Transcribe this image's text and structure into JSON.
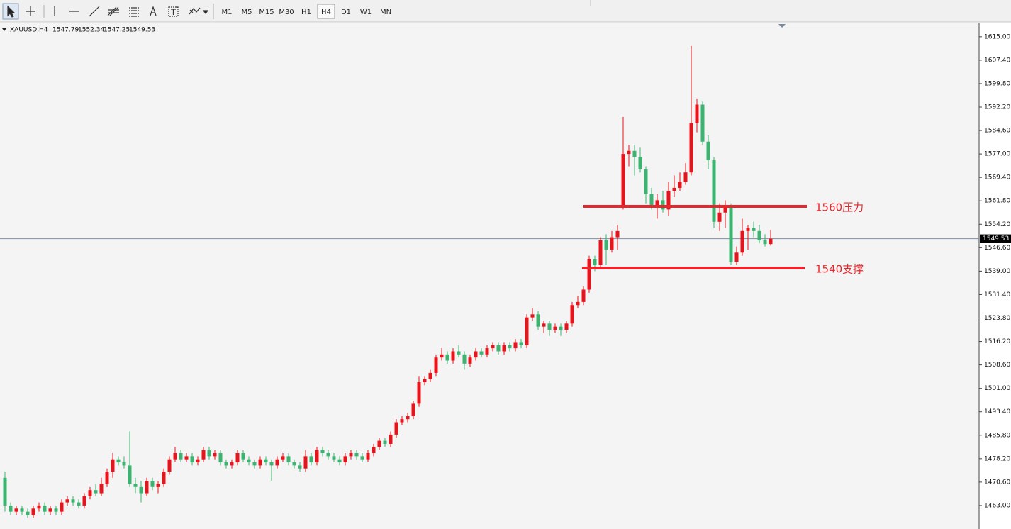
{
  "toolbar": {
    "timeframes": [
      "M1",
      "M5",
      "M15",
      "M30",
      "H1",
      "H4",
      "D1",
      "W1",
      "MN"
    ],
    "active": "H4"
  },
  "chart_data": {
    "type": "candlestick",
    "header": {
      "symbol": "XAUUSD,H4",
      "open": 1547.79,
      "high": 1552.34,
      "low": 1547.25,
      "close": 1549.53
    },
    "up_color": "#e8141b",
    "down_color": "#3cb371",
    "candles": [
      [
        1472,
        1474,
        1461,
        1463
      ],
      [
        1463,
        1464,
        1460,
        1461
      ],
      [
        1461,
        1463,
        1460,
        1462
      ],
      [
        1462,
        1463,
        1460,
        1461
      ],
      [
        1461,
        1462,
        1459,
        1460
      ],
      [
        1460,
        1463,
        1459,
        1462
      ],
      [
        1462,
        1464,
        1461,
        1463
      ],
      [
        1463,
        1464,
        1460,
        1461
      ],
      [
        1461,
        1463,
        1460,
        1462
      ],
      [
        1462,
        1463,
        1460,
        1461
      ],
      [
        1461,
        1465,
        1460,
        1464
      ],
      [
        1464,
        1466,
        1463,
        1465
      ],
      [
        1465,
        1466,
        1463,
        1464
      ],
      [
        1464,
        1465,
        1462,
        1463
      ],
      [
        1463,
        1467,
        1462,
        1466
      ],
      [
        1466,
        1469,
        1465,
        1468
      ],
      [
        1468,
        1470,
        1466,
        1467
      ],
      [
        1467,
        1472,
        1466,
        1470
      ],
      [
        1470,
        1475,
        1469,
        1474
      ],
      [
        1474,
        1480,
        1472,
        1478
      ],
      [
        1478,
        1479,
        1476,
        1477
      ],
      [
        1477,
        1479,
        1475,
        1476
      ],
      [
        1476,
        1487,
        1469,
        1470
      ],
      [
        1470,
        1472,
        1467,
        1469
      ],
      [
        1469,
        1471,
        1464,
        1467
      ],
      [
        1467,
        1472,
        1466,
        1471
      ],
      [
        1471,
        1472,
        1468,
        1469
      ],
      [
        1469,
        1471,
        1467,
        1470
      ],
      [
        1470,
        1475,
        1469,
        1474
      ],
      [
        1474,
        1479,
        1473,
        1478
      ],
      [
        1478,
        1482,
        1477,
        1480
      ],
      [
        1480,
        1481,
        1477,
        1478
      ],
      [
        1478,
        1480,
        1477,
        1479
      ],
      [
        1479,
        1480,
        1476,
        1477
      ],
      [
        1477,
        1479,
        1476,
        1478
      ],
      [
        1478,
        1482,
        1477,
        1481
      ],
      [
        1481,
        1482,
        1478,
        1479
      ],
      [
        1479,
        1481,
        1478,
        1480
      ],
      [
        1480,
        1481,
        1476,
        1477
      ],
      [
        1477,
        1478,
        1475,
        1476
      ],
      [
        1476,
        1478,
        1475,
        1477
      ],
      [
        1477,
        1481,
        1476,
        1480
      ],
      [
        1480,
        1481,
        1477,
        1478
      ],
      [
        1478,
        1479,
        1476,
        1477
      ],
      [
        1477,
        1478,
        1475,
        1476
      ],
      [
        1476,
        1479,
        1475,
        1478
      ],
      [
        1478,
        1479,
        1476,
        1477
      ],
      [
        1477,
        1478,
        1471,
        1476
      ],
      [
        1476,
        1479,
        1475,
        1478
      ],
      [
        1478,
        1480,
        1477,
        1479
      ],
      [
        1479,
        1480,
        1476,
        1477
      ],
      [
        1477,
        1478,
        1475,
        1476
      ],
      [
        1476,
        1477,
        1474,
        1475
      ],
      [
        1475,
        1481,
        1474,
        1479
      ],
      [
        1479,
        1480,
        1476,
        1477
      ],
      [
        1477,
        1482,
        1476,
        1481
      ],
      [
        1481,
        1482,
        1479,
        1480
      ],
      [
        1480,
        1481,
        1478,
        1479
      ],
      [
        1479,
        1480,
        1477,
        1478
      ],
      [
        1478,
        1479,
        1476,
        1477
      ],
      [
        1477,
        1480,
        1476,
        1479
      ],
      [
        1479,
        1481,
        1478,
        1480
      ],
      [
        1480,
        1481,
        1478,
        1479
      ],
      [
        1479,
        1480,
        1477,
        1478
      ],
      [
        1478,
        1481,
        1477,
        1480
      ],
      [
        1480,
        1483,
        1479,
        1482
      ],
      [
        1482,
        1485,
        1481,
        1484
      ],
      [
        1484,
        1485,
        1482,
        1483
      ],
      [
        1483,
        1487,
        1482,
        1486
      ],
      [
        1486,
        1491,
        1485,
        1490
      ],
      [
        1490,
        1492,
        1489,
        1491
      ],
      [
        1491,
        1493,
        1490,
        1492
      ],
      [
        1492,
        1497,
        1491,
        1496
      ],
      [
        1496,
        1505,
        1495,
        1503
      ],
      [
        1503,
        1505,
        1502,
        1504
      ],
      [
        1504,
        1507,
        1503,
        1506
      ],
      [
        1506,
        1512,
        1505,
        1511
      ],
      [
        1511,
        1514,
        1510,
        1512
      ],
      [
        1512,
        1513,
        1509,
        1510
      ],
      [
        1510,
        1514,
        1509,
        1513
      ],
      [
        1513,
        1515,
        1511,
        1512
      ],
      [
        1512,
        1513,
        1507,
        1509
      ],
      [
        1509,
        1512,
        1508,
        1511
      ],
      [
        1511,
        1514,
        1510,
        1513
      ],
      [
        1513,
        1514,
        1511,
        1512
      ],
      [
        1512,
        1515,
        1511,
        1514
      ],
      [
        1514,
        1516,
        1513,
        1515
      ],
      [
        1515,
        1516,
        1512,
        1513
      ],
      [
        1513,
        1516,
        1512,
        1515
      ],
      [
        1515,
        1516,
        1513,
        1514
      ],
      [
        1514,
        1517,
        1513,
        1516
      ],
      [
        1516,
        1517,
        1514,
        1515
      ],
      [
        1515,
        1525,
        1514,
        1524
      ],
      [
        1524,
        1527,
        1523,
        1525
      ],
      [
        1525,
        1526,
        1520,
        1521
      ],
      [
        1521,
        1523,
        1519,
        1522
      ],
      [
        1522,
        1523,
        1518,
        1520
      ],
      [
        1520,
        1522,
        1519,
        1521
      ],
      [
        1521,
        1522,
        1518,
        1520
      ],
      [
        1520,
        1523,
        1519,
        1522
      ],
      [
        1522,
        1529,
        1521,
        1528
      ],
      [
        1528,
        1531,
        1527,
        1529
      ],
      [
        1529,
        1534,
        1528,
        1533
      ],
      [
        1533,
        1544,
        1532,
        1543
      ],
      [
        1543,
        1544,
        1539,
        1541
      ],
      [
        1541,
        1550,
        1540,
        1549
      ],
      [
        1549,
        1551,
        1541,
        1546
      ],
      [
        1546,
        1552,
        1545,
        1550
      ],
      [
        1550,
        1554,
        1546,
        1552
      ],
      [
        1560,
        1589,
        1559,
        1577
      ],
      [
        1577,
        1580,
        1573,
        1578
      ],
      [
        1578,
        1580,
        1570,
        1576
      ],
      [
        1576,
        1579,
        1571,
        1572
      ],
      [
        1572,
        1573,
        1561,
        1564
      ],
      [
        1564,
        1566,
        1559,
        1560
      ],
      [
        1560,
        1564,
        1556,
        1562
      ],
      [
        1562,
        1565,
        1558,
        1559
      ],
      [
        1559,
        1568,
        1557,
        1565
      ],
      [
        1565,
        1570,
        1563,
        1566
      ],
      [
        1566,
        1571,
        1565,
        1568
      ],
      [
        1568,
        1574,
        1567,
        1571
      ],
      [
        1571,
        1612,
        1570,
        1587
      ],
      [
        1587,
        1595,
        1584,
        1593
      ],
      [
        1593,
        1594,
        1580,
        1581
      ],
      [
        1581,
        1583,
        1572,
        1575
      ],
      [
        1575,
        1576,
        1553,
        1555
      ],
      [
        1555,
        1561,
        1552,
        1558
      ],
      [
        1558,
        1562,
        1553,
        1560
      ],
      [
        1560,
        1561,
        1541,
        1542
      ],
      [
        1542,
        1547,
        1541,
        1545
      ],
      [
        1545,
        1556,
        1544,
        1552
      ],
      [
        1552,
        1554,
        1546,
        1553
      ],
      [
        1553,
        1555,
        1550,
        1552
      ],
      [
        1552,
        1554,
        1548,
        1549
      ],
      [
        1549,
        1551,
        1547,
        1547.79
      ],
      [
        1547.79,
        1552.34,
        1547.25,
        1549.53
      ]
    ],
    "last_price": {
      "value": 1549.53,
      "label": "1549.53"
    },
    "levels": [
      {
        "value": 1560,
        "label": "1560压力"
      },
      {
        "value": 1540,
        "label": "1540支撑"
      }
    ],
    "level_color": "#e8262d",
    "ylim": [
      1455.4,
      1619.1
    ],
    "yticks": [
      {
        "value": 1615,
        "label": "1615.00"
      },
      {
        "value": 1607.4,
        "label": "1607.40"
      },
      {
        "value": 1599.8,
        "label": "1599.80"
      },
      {
        "value": 1592.2,
        "label": "1592.20"
      },
      {
        "value": 1584.6,
        "label": "1584.60"
      },
      {
        "value": 1577,
        "label": "1577.00"
      },
      {
        "value": 1569.4,
        "label": "1569.40"
      },
      {
        "value": 1561.8,
        "label": "1561.80"
      },
      {
        "value": 1554.2,
        "label": "1554.20"
      },
      {
        "value": 1546.6,
        "label": "1546.60"
      },
      {
        "value": 1539,
        "label": "1539.00"
      },
      {
        "value": 1531.4,
        "label": "1531.40"
      },
      {
        "value": 1523.8,
        "label": "1523.80"
      },
      {
        "value": 1516.2,
        "label": "1516.20"
      },
      {
        "value": 1508.6,
        "label": "1508.60"
      },
      {
        "value": 1501,
        "label": "1501.00"
      },
      {
        "value": 1493.4,
        "label": "1493.40"
      },
      {
        "value": 1485.8,
        "label": "1485.80"
      },
      {
        "value": 1478.2,
        "label": "1478.20"
      },
      {
        "value": 1470.6,
        "label": "1470.60"
      },
      {
        "value": 1463,
        "label": "1463.00"
      }
    ]
  }
}
